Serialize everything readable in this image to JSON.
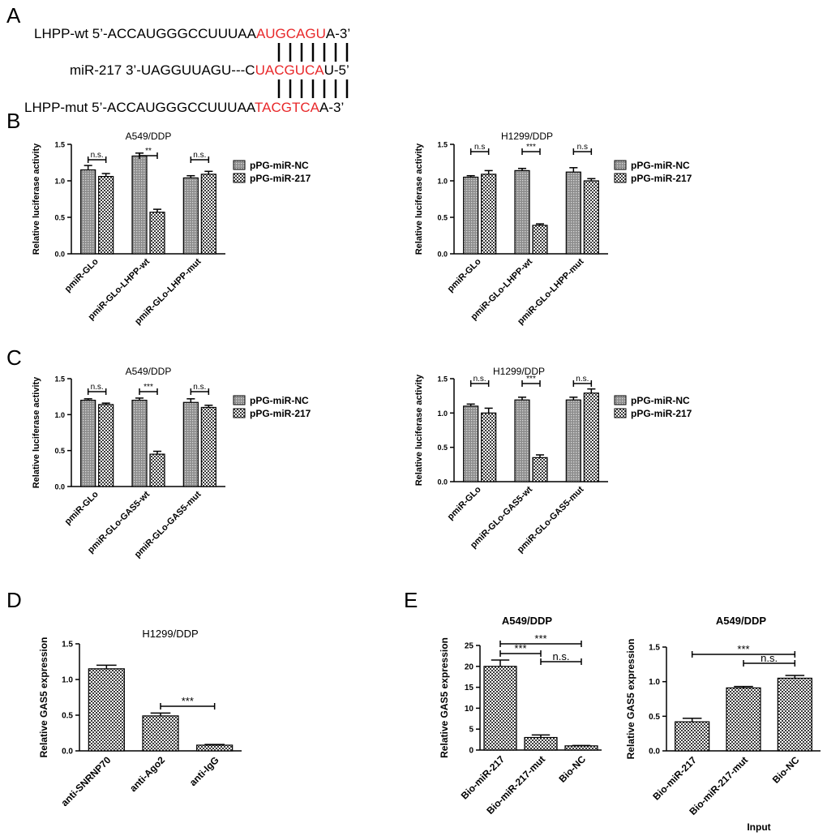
{
  "panel_letters": [
    "A",
    "B",
    "C",
    "D",
    "E"
  ],
  "sequences": {
    "wt": {
      "prefix": "LHPP-wt 5’-ACCAUGGGCCUUUAA",
      "highlight": "AUGCAGU",
      "suffix": "A-3’"
    },
    "mir": {
      "prefix": "miR-217 3’-UAGGUUAGU---C",
      "highlight": "UACGUCA",
      "suffix": "U-5’"
    },
    "mut": {
      "prefix": "LHPP-mut 5’-ACCAUGGGCCUUUAA",
      "highlight": "TACGTCA",
      "suffix": "A-3’"
    }
  },
  "colors": {
    "highlight": "#e8282a",
    "bar_fill_nc": "#9a9a9a",
    "bar_fill_checker": "#c4c4c4"
  },
  "chart_data": [
    {
      "id": "B1",
      "type": "bar",
      "title": "A549/DDP",
      "ylabel": "Relative luciferase activity",
      "ylim": [
        0,
        1.5
      ],
      "yticks": [
        "0.0",
        "0.5",
        "1.0",
        "1.5"
      ],
      "categories": [
        "pmiR-GLo",
        "pmiR-GLo-LHPP-wt",
        "pmiR-GLo-LHPP-mut"
      ],
      "series": [
        {
          "name": "pPG-miR-NC",
          "values": [
            1.15,
            1.34,
            1.04
          ],
          "errors": [
            0.06,
            0.04,
            0.03
          ]
        },
        {
          "name": "pPG-miR-217",
          "values": [
            1.06,
            0.57,
            1.09
          ],
          "errors": [
            0.04,
            0.04,
            0.04
          ]
        }
      ],
      "annotations": [
        "n.s.",
        "**",
        "n.s."
      ],
      "legend": "right"
    },
    {
      "id": "B2",
      "type": "bar",
      "title": "H1299/DDP",
      "ylabel": "Relative luciferase activity",
      "ylim": [
        0,
        1.5
      ],
      "yticks": [
        "0.0",
        "0.5",
        "1.0",
        "1.5"
      ],
      "categories": [
        "pmiR-GLo",
        "pmiR-GLo-LHPP-wt",
        "pmiR-GLo-LHPP-mut"
      ],
      "series": [
        {
          "name": "pPG-miR-NC",
          "values": [
            1.05,
            1.14,
            1.12
          ],
          "errors": [
            0.02,
            0.03,
            0.06
          ]
        },
        {
          "name": "pPG-miR-217",
          "values": [
            1.09,
            0.39,
            1.0
          ],
          "errors": [
            0.05,
            0.02,
            0.03
          ]
        }
      ],
      "annotations": [
        "n.s",
        "***",
        "n.s"
      ],
      "legend": "right"
    },
    {
      "id": "C1",
      "type": "bar",
      "title": "A549/DDP",
      "ylabel": "Relative luciferase activity",
      "ylim": [
        0,
        1.5
      ],
      "yticks": [
        "0.0",
        "0.5",
        "1.0",
        "1.5"
      ],
      "categories": [
        "pmiR-GLo",
        "pmiR-GLo-GAS5-wt",
        "pmiR-GLo-GAS5-mut"
      ],
      "series": [
        {
          "name": "pPG-miR-NC",
          "values": [
            1.2,
            1.2,
            1.17
          ],
          "errors": [
            0.02,
            0.03,
            0.05
          ]
        },
        {
          "name": "pPG-miR-217",
          "values": [
            1.14,
            0.45,
            1.1
          ],
          "errors": [
            0.02,
            0.04,
            0.03
          ]
        }
      ],
      "annotations": [
        "n.s.",
        "***",
        "n.s."
      ],
      "legend": "right"
    },
    {
      "id": "C2",
      "type": "bar",
      "title": "H1299/DDP",
      "ylabel": "Relative luciferase activity",
      "ylim": [
        0,
        1.5
      ],
      "yticks": [
        "0.0",
        "0.5",
        "1.0",
        "1.5"
      ],
      "categories": [
        "pmiR-GLo",
        "pmiR-GLo-GAS5-wt",
        "pmiR-GLo-GAS5-mut"
      ],
      "series": [
        {
          "name": "pPG-miR-NC",
          "values": [
            1.1,
            1.19,
            1.19
          ],
          "errors": [
            0.03,
            0.04,
            0.04
          ]
        },
        {
          "name": "pPG-miR-217",
          "values": [
            1.0,
            0.35,
            1.29
          ],
          "errors": [
            0.07,
            0.04,
            0.06
          ]
        }
      ],
      "annotations": [
        "n.s.",
        "***",
        "n.s."
      ],
      "legend": "right"
    },
    {
      "id": "D",
      "type": "bar",
      "title": "H1299/DDP",
      "ylabel": "Relative GAS5 expression",
      "ylim": [
        0,
        1.5
      ],
      "yticks": [
        "0.0",
        "0.5",
        "1.0",
        "1.5"
      ],
      "categories": [
        "anti-SNRNP70",
        "anti-Ago2",
        "anti-IgG"
      ],
      "series": [
        {
          "values": [
            1.15,
            0.49,
            0.08
          ],
          "errors": [
            0.05,
            0.04,
            0.01
          ]
        }
      ],
      "annotations": [
        "***"
      ]
    },
    {
      "id": "E1",
      "type": "bar",
      "title": "A549/DDP",
      "ylabel": "Relative GAS5 expression",
      "ylim": [
        0,
        25
      ],
      "yticks": [
        "0",
        "5",
        "10",
        "15",
        "20",
        "25"
      ],
      "categories": [
        "Bio-miR-217",
        "Bio-miR-217-mut",
        "Bio-NC"
      ],
      "series": [
        {
          "values": [
            20.0,
            3.0,
            1.0
          ],
          "errors": [
            1.5,
            0.6,
            0.1
          ]
        }
      ],
      "annotations": [
        "***",
        "***",
        "n.s."
      ]
    },
    {
      "id": "E2",
      "type": "bar",
      "title": "A549/DDP",
      "ylabel": "Relative GAS5 expression",
      "ylim": [
        0,
        1.5
      ],
      "yticks": [
        "0.0",
        "0.5",
        "1.0",
        "1.5"
      ],
      "categories": [
        "Bio-miR-217",
        "Bio-miR-217-mut",
        "Bio-NC"
      ],
      "series": [
        {
          "values": [
            0.42,
            0.91,
            1.05
          ],
          "errors": [
            0.05,
            0.02,
            0.04
          ]
        }
      ],
      "annotations": [
        "***",
        "n.s."
      ],
      "xlabel": "Input"
    }
  ]
}
